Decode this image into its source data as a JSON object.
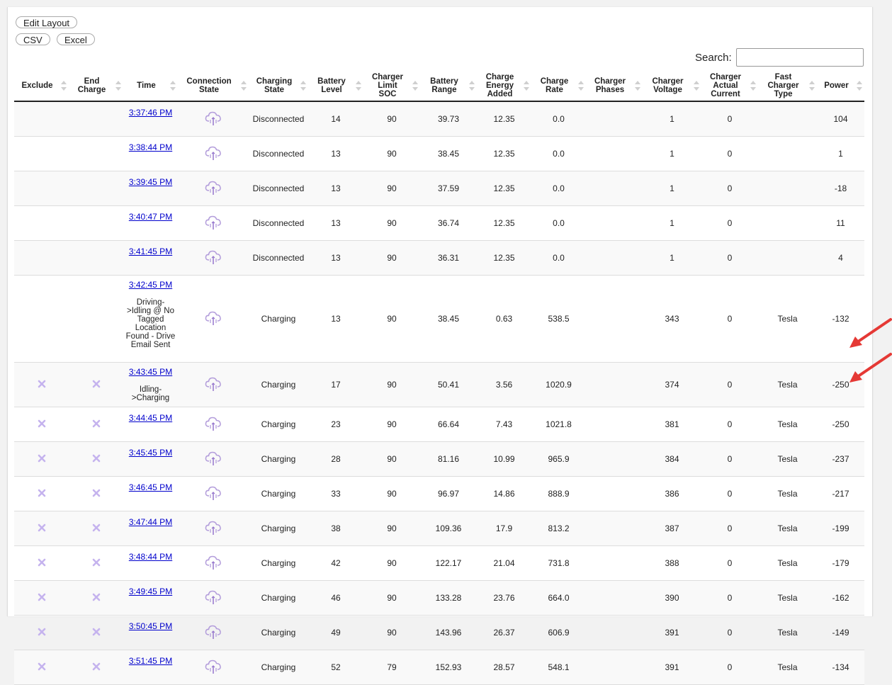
{
  "toolbar": {
    "edit_layout": "Edit Layout",
    "csv": "CSV",
    "excel": "Excel"
  },
  "search": {
    "label": "Search:",
    "value": ""
  },
  "columns": [
    {
      "key": "exclude",
      "lines": [
        "Exclude"
      ]
    },
    {
      "key": "end_charge",
      "lines": [
        "End",
        "Charge"
      ]
    },
    {
      "key": "time",
      "lines": [
        "Time"
      ]
    },
    {
      "key": "connection_state",
      "lines": [
        "Connection",
        "State"
      ]
    },
    {
      "key": "charging_state",
      "lines": [
        "Charging",
        "State"
      ]
    },
    {
      "key": "battery_level",
      "lines": [
        "Battery",
        "Level"
      ]
    },
    {
      "key": "charger_limit_soc",
      "lines": [
        "Charger",
        "Limit",
        "SOC"
      ]
    },
    {
      "key": "battery_range",
      "lines": [
        "Battery",
        "Range"
      ]
    },
    {
      "key": "charge_energy_added",
      "lines": [
        "Charge",
        "Energy",
        "Added"
      ]
    },
    {
      "key": "charge_rate",
      "lines": [
        "Charge",
        "Rate"
      ]
    },
    {
      "key": "charger_phases",
      "lines": [
        "Charger",
        "Phases"
      ]
    },
    {
      "key": "charger_voltage",
      "lines": [
        "Charger",
        "Voltage"
      ]
    },
    {
      "key": "charger_actual_current",
      "lines": [
        "Charger",
        "Actual",
        "Current"
      ]
    },
    {
      "key": "fast_charger_type",
      "lines": [
        "Fast",
        "Charger",
        "Type"
      ]
    },
    {
      "key": "power",
      "lines": [
        "Power"
      ]
    }
  ],
  "rows": [
    {
      "x": false,
      "time": "3:37:46 PM",
      "note": "",
      "cs": "Disconnected",
      "bl": "14",
      "soc": "90",
      "range": "39.73",
      "energy": "12.35",
      "rate": "0.0",
      "phases": "",
      "volt": "1",
      "cur": "0",
      "fct": "",
      "power": "104"
    },
    {
      "x": false,
      "time": "3:38:44 PM",
      "note": "",
      "cs": "Disconnected",
      "bl": "13",
      "soc": "90",
      "range": "38.45",
      "energy": "12.35",
      "rate": "0.0",
      "phases": "",
      "volt": "1",
      "cur": "0",
      "fct": "",
      "power": "1"
    },
    {
      "x": false,
      "time": "3:39:45 PM",
      "note": "",
      "cs": "Disconnected",
      "bl": "13",
      "soc": "90",
      "range": "37.59",
      "energy": "12.35",
      "rate": "0.0",
      "phases": "",
      "volt": "1",
      "cur": "0",
      "fct": "",
      "power": "-18"
    },
    {
      "x": false,
      "time": "3:40:47 PM",
      "note": "",
      "cs": "Disconnected",
      "bl": "13",
      "soc": "90",
      "range": "36.74",
      "energy": "12.35",
      "rate": "0.0",
      "phases": "",
      "volt": "1",
      "cur": "0",
      "fct": "",
      "power": "11"
    },
    {
      "x": false,
      "time": "3:41:45 PM",
      "note": "",
      "cs": "Disconnected",
      "bl": "13",
      "soc": "90",
      "range": "36.31",
      "energy": "12.35",
      "rate": "0.0",
      "phases": "",
      "volt": "1",
      "cur": "0",
      "fct": "",
      "power": "4"
    },
    {
      "x": false,
      "time": "3:42:45 PM",
      "note": "Driving->Idling @ No Tagged Location Found - Drive Email Sent",
      "cs": "Charging",
      "bl": "13",
      "soc": "90",
      "range": "38.45",
      "energy": "0.63",
      "rate": "538.5",
      "phases": "",
      "volt": "343",
      "cur": "0",
      "fct": "Tesla",
      "power": "-132"
    },
    {
      "x": true,
      "time": "3:43:45 PM",
      "note": "Idling->Charging",
      "cs": "Charging",
      "bl": "17",
      "soc": "90",
      "range": "50.41",
      "energy": "3.56",
      "rate": "1020.9",
      "phases": "",
      "volt": "374",
      "cur": "0",
      "fct": "Tesla",
      "power": "-250"
    },
    {
      "x": true,
      "time": "3:44:45 PM",
      "note": "",
      "cs": "Charging",
      "bl": "23",
      "soc": "90",
      "range": "66.64",
      "energy": "7.43",
      "rate": "1021.8",
      "phases": "",
      "volt": "381",
      "cur": "0",
      "fct": "Tesla",
      "power": "-250"
    },
    {
      "x": true,
      "time": "3:45:45 PM",
      "note": "",
      "cs": "Charging",
      "bl": "28",
      "soc": "90",
      "range": "81.16",
      "energy": "10.99",
      "rate": "965.9",
      "phases": "",
      "volt": "384",
      "cur": "0",
      "fct": "Tesla",
      "power": "-237"
    },
    {
      "x": true,
      "time": "3:46:45 PM",
      "note": "",
      "cs": "Charging",
      "bl": "33",
      "soc": "90",
      "range": "96.97",
      "energy": "14.86",
      "rate": "888.9",
      "phases": "",
      "volt": "386",
      "cur": "0",
      "fct": "Tesla",
      "power": "-217"
    },
    {
      "x": true,
      "time": "3:47:44 PM",
      "note": "",
      "cs": "Charging",
      "bl": "38",
      "soc": "90",
      "range": "109.36",
      "energy": "17.9",
      "rate": "813.2",
      "phases": "",
      "volt": "387",
      "cur": "0",
      "fct": "Tesla",
      "power": "-199"
    },
    {
      "x": true,
      "time": "3:48:44 PM",
      "note": "",
      "cs": "Charging",
      "bl": "42",
      "soc": "90",
      "range": "122.17",
      "energy": "21.04",
      "rate": "731.8",
      "phases": "",
      "volt": "388",
      "cur": "0",
      "fct": "Tesla",
      "power": "-179"
    },
    {
      "x": true,
      "time": "3:49:45 PM",
      "note": "",
      "cs": "Charging",
      "bl": "46",
      "soc": "90",
      "range": "133.28",
      "energy": "23.76",
      "rate": "664.0",
      "phases": "",
      "volt": "390",
      "cur": "0",
      "fct": "Tesla",
      "power": "-162"
    },
    {
      "x": true,
      "time": "3:50:45 PM",
      "note": "",
      "cs": "Charging",
      "bl": "49",
      "soc": "90",
      "range": "143.96",
      "energy": "26.37",
      "rate": "606.9",
      "phases": "",
      "volt": "391",
      "cur": "0",
      "fct": "Tesla",
      "power": "-149"
    },
    {
      "x": true,
      "time": "3:51:45 PM",
      "note": "",
      "cs": "Charging",
      "bl": "52",
      "soc": "79",
      "range": "152.93",
      "energy": "28.57",
      "rate": "548.1",
      "phases": "",
      "volt": "391",
      "cur": "0",
      "fct": "Tesla",
      "power": "-134"
    }
  ],
  "icons": {
    "connection": "cloud-plug-icon",
    "exclude": "x-mark-icon",
    "end_charge": "x-mark-icon"
  },
  "colors": {
    "link": "#0000cc",
    "icon_purple": "#b39ddb",
    "arrow_red": "#e53935"
  }
}
